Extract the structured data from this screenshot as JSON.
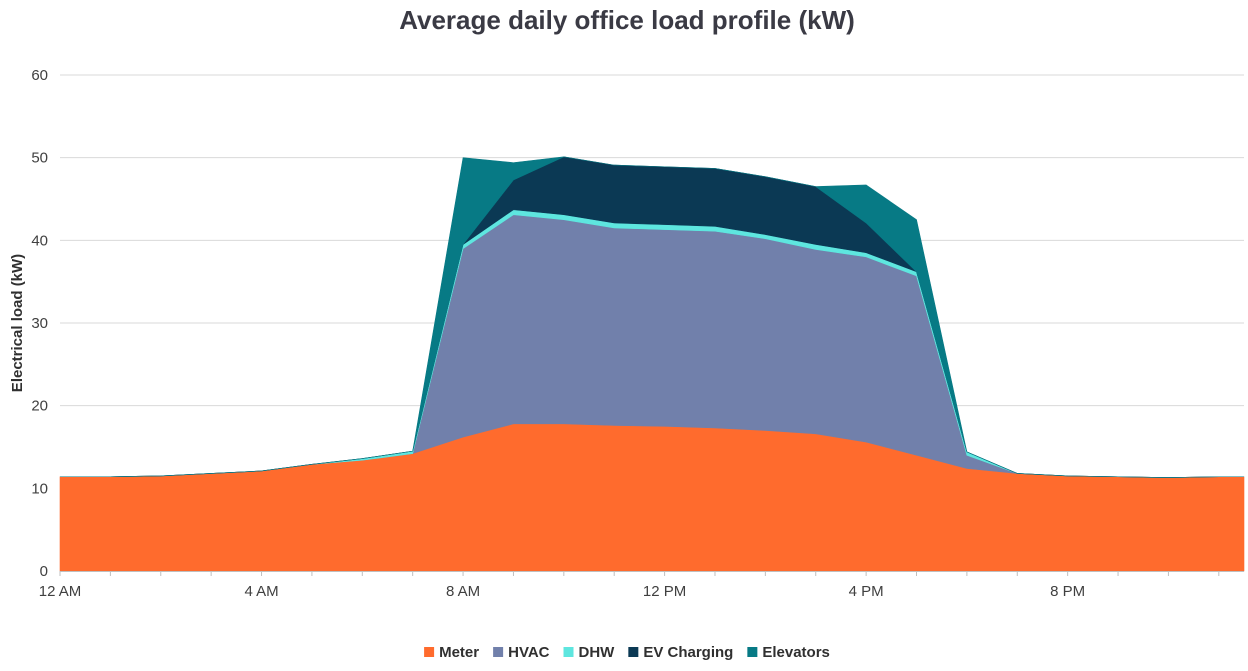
{
  "chart_data": {
    "type": "area",
    "stacked": true,
    "title": "Average daily office load profile (kW)",
    "ylabel": "Electrical load (kW)",
    "xlabel": "",
    "ylim": [
      0,
      60
    ],
    "yticks": [
      0,
      10,
      20,
      30,
      40,
      50,
      60
    ],
    "x": [
      "12 AM",
      "1 AM",
      "2 AM",
      "3 AM",
      "4 AM",
      "5 AM",
      "6 AM",
      "7 AM",
      "8 AM",
      "9 AM",
      "10 AM",
      "11 AM",
      "12 PM",
      "1 PM",
      "2 PM",
      "3 PM",
      "4 PM",
      "5 PM",
      "6 PM",
      "7 PM",
      "8 PM",
      "9 PM",
      "10 PM",
      "11 PM"
    ],
    "xtick_labels": [
      "12 AM",
      "4 AM",
      "8 AM",
      "12 PM",
      "4 PM",
      "8 PM"
    ],
    "grid": true,
    "legend_position": "bottom",
    "series": [
      {
        "name": "Meter",
        "color": "#ff6b2d",
        "values": [
          11.4,
          11.4,
          11.5,
          11.8,
          12.1,
          12.9,
          13.4,
          14.2,
          16.2,
          17.8,
          17.8,
          17.6,
          17.5,
          17.3,
          17.0,
          16.6,
          15.6,
          14.0,
          12.4,
          11.8,
          11.5,
          11.4,
          11.3,
          11.4
        ]
      },
      {
        "name": "HVAC",
        "color": "#7180ab",
        "values": [
          0,
          0,
          0,
          0,
          0,
          0,
          0,
          0,
          22.8,
          25.3,
          24.7,
          23.9,
          23.8,
          23.8,
          23.2,
          22.3,
          22.4,
          21.7,
          1.6,
          0,
          0,
          0,
          0,
          0
        ]
      },
      {
        "name": "DHW",
        "color": "#5ee6df",
        "values": [
          0,
          0,
          0,
          0,
          0,
          0,
          0.2,
          0.3,
          0.5,
          0.6,
          0.6,
          0.6,
          0.6,
          0.6,
          0.5,
          0.6,
          0.5,
          0.5,
          0.4,
          0,
          0,
          0,
          0,
          0
        ]
      },
      {
        "name": "EV Charging",
        "color": "#0b3954",
        "values": [
          0,
          0,
          0,
          0,
          0,
          0,
          0,
          0,
          0,
          3.6,
          7.0,
          7.0,
          7.0,
          7.0,
          7.0,
          7.0,
          3.6,
          0,
          0,
          0,
          0,
          0,
          0,
          0
        ]
      },
      {
        "name": "Elevators",
        "color": "#077a85",
        "values": [
          0,
          0,
          0,
          0,
          0,
          0,
          0,
          0,
          10.5,
          2.1,
          0,
          0,
          0,
          0,
          0,
          0,
          4.6,
          6.3,
          0,
          0,
          0,
          0,
          0,
          0
        ]
      }
    ]
  }
}
